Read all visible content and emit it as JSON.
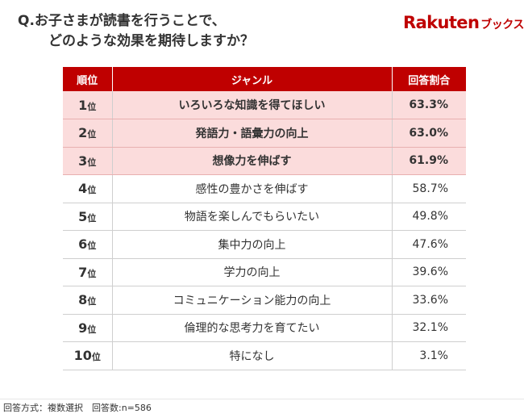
{
  "question": {
    "line1": "Q.お子さまが読書を行うことで、",
    "line2": "どのような効果を期待しますか？"
  },
  "logo": {
    "brand": "Rakuten",
    "sub": "ブックス",
    "color": "#bf0000"
  },
  "chart_data": {
    "type": "table",
    "columns": [
      "順位",
      "ジャンル",
      "回答割合"
    ],
    "rank_suffix": "位",
    "rows": [
      {
        "rank": "1",
        "label": "いろいろな知識を得てほしい",
        "percent": "63.3%",
        "value": 63.3,
        "highlight": true
      },
      {
        "rank": "2",
        "label": "発語力・語彙力の向上",
        "percent": "63.0%",
        "value": 63.0,
        "highlight": true
      },
      {
        "rank": "3",
        "label": "想像力を伸ばす",
        "percent": "61.9%",
        "value": 61.9,
        "highlight": true
      },
      {
        "rank": "4",
        "label": "感性の豊かさを伸ばす",
        "percent": "58.7%",
        "value": 58.7,
        "highlight": false
      },
      {
        "rank": "5",
        "label": "物語を楽しんでもらいたい",
        "percent": "49.8%",
        "value": 49.8,
        "highlight": false
      },
      {
        "rank": "6",
        "label": "集中力の向上",
        "percent": "47.6%",
        "value": 47.6,
        "highlight": false
      },
      {
        "rank": "7",
        "label": "学力の向上",
        "percent": "39.6%",
        "value": 39.6,
        "highlight": false
      },
      {
        "rank": "8",
        "label": "コミュニケーション能力の向上",
        "percent": "33.6%",
        "value": 33.6,
        "highlight": false
      },
      {
        "rank": "9",
        "label": "倫理的な思考力を育てたい",
        "percent": "32.1%",
        "value": 32.1,
        "highlight": false
      },
      {
        "rank": "10",
        "label": "特になし",
        "percent": "3.1%",
        "value": 3.1,
        "highlight": false
      }
    ],
    "header_color": "#bf0000",
    "highlight_color": "#fbdcdc"
  },
  "footer": {
    "note": "回答方式：複数選択　回答数:n=586"
  }
}
